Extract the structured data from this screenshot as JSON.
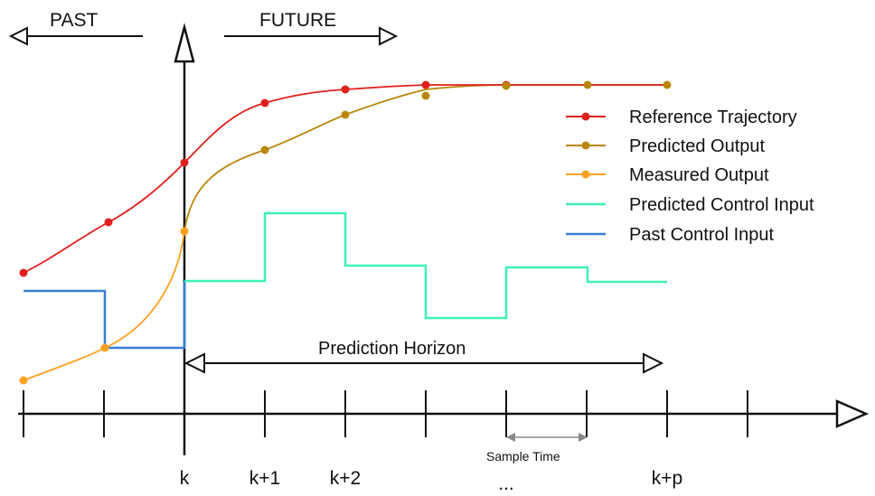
{
  "header": {
    "past_label": "PAST",
    "future_label": "FUTURE"
  },
  "legend": [
    {
      "label": "Reference Trajectory",
      "color": "#e0201b",
      "marker": "dot"
    },
    {
      "label": "Predicted Output",
      "color": "#b8860b",
      "marker": "dot"
    },
    {
      "label": "Measured Output",
      "color": "#ffa020",
      "marker": "dot"
    },
    {
      "label": "Predicted Control Input",
      "color": "#3ef0b8",
      "marker": "none"
    },
    {
      "label": "Past Control Input",
      "color": "#3a7fd5",
      "marker": "none"
    }
  ],
  "annotations": {
    "prediction_horizon": "Prediction Horizon",
    "sample_time": "Sample Time"
  },
  "axis": {
    "tick_labels": [
      "k",
      "k+1",
      "k+2",
      "...",
      "k+p"
    ]
  },
  "colors": {
    "reference": "#e0201b",
    "predicted_output": "#b8860b",
    "measured_output": "#ffa020",
    "predicted_control": "#3ef0b8",
    "past_control": "#3a7fd5",
    "axis": "#111111"
  }
}
